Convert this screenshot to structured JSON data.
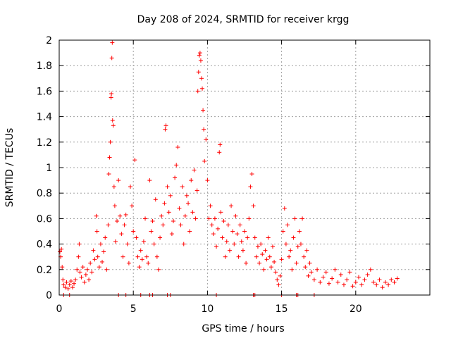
{
  "chart_data": {
    "type": "scatter",
    "title": "Day 208 of 2024, SRMTID for receiver krgg",
    "xlabel": "GPS time / hours",
    "ylabel": "SRMTID / TECUs",
    "xlim": [
      0,
      25
    ],
    "ylim": [
      0,
      2
    ],
    "x_ticks": [
      0,
      5,
      10,
      15,
      20
    ],
    "x_tick_labels": [
      "0",
      "5",
      "10",
      "15",
      "20"
    ],
    "y_ticks": [
      0,
      0.2,
      0.4,
      0.6,
      0.8,
      1,
      1.2,
      1.4,
      1.6,
      1.8,
      2
    ],
    "y_tick_labels": [
      "0",
      "0.2",
      "0.4",
      "0.6",
      "0.8",
      "1",
      "1.2",
      "1.4",
      "1.6",
      "1.8",
      "2"
    ],
    "grid": true,
    "marker": "+",
    "marker_color": "#ff0000",
    "series": [
      {
        "name": "SRMTID",
        "points": [
          [
            0.05,
            0.34
          ],
          [
            0.1,
            0.3
          ],
          [
            0.15,
            0.36
          ],
          [
            0.2,
            0.22
          ],
          [
            0.25,
            0.12
          ],
          [
            0.3,
            0.08
          ],
          [
            0.4,
            0.06
          ],
          [
            0.5,
            0.1
          ],
          [
            0.6,
            0.05
          ],
          [
            0.7,
            0.08
          ],
          [
            0.8,
            0.11
          ],
          [
            0.9,
            0.06
          ],
          [
            1.0,
            0.09
          ],
          [
            1.1,
            0.12
          ],
          [
            1.2,
            0.2
          ],
          [
            1.3,
            0.3
          ],
          [
            1.35,
            0.4
          ],
          [
            1.4,
            0.18
          ],
          [
            1.5,
            0.14
          ],
          [
            1.6,
            0.22
          ],
          [
            1.7,
            0.1
          ],
          [
            1.8,
            0.16
          ],
          [
            1.9,
            0.2
          ],
          [
            2.0,
            0.12
          ],
          [
            2.1,
            0.25
          ],
          [
            2.2,
            0.18
          ],
          [
            2.3,
            0.35
          ],
          [
            2.4,
            0.28
          ],
          [
            2.5,
            0.62
          ],
          [
            2.55,
            0.5
          ],
          [
            2.6,
            0.3
          ],
          [
            2.7,
            0.22
          ],
          [
            2.8,
            0.4
          ],
          [
            2.9,
            0.26
          ],
          [
            3.0,
            0.34
          ],
          [
            3.1,
            0.45
          ],
          [
            3.2,
            0.2
          ],
          [
            3.3,
            0.55
          ],
          [
            3.35,
            0.95
          ],
          [
            3.4,
            1.08
          ],
          [
            3.45,
            1.2
          ],
          [
            3.5,
            1.55
          ],
          [
            3.52,
            1.58
          ],
          [
            3.55,
            1.86
          ],
          [
            3.58,
            1.98
          ],
          [
            3.6,
            1.37
          ],
          [
            3.65,
            1.33
          ],
          [
            3.7,
            0.85
          ],
          [
            3.75,
            0.7
          ],
          [
            3.8,
            0.42
          ],
          [
            3.9,
            0.58
          ],
          [
            4.0,
            0.9
          ],
          [
            4.1,
            0.62
          ],
          [
            4.2,
            0.48
          ],
          [
            4.3,
            0.3
          ],
          [
            4.4,
            0.55
          ],
          [
            4.5,
            0.63
          ],
          [
            4.6,
            0.4
          ],
          [
            4.7,
            0.25
          ],
          [
            4.8,
            0.85
          ],
          [
            4.9,
            0.7
          ],
          [
            5.0,
            0.5
          ],
          [
            5.1,
            1.06
          ],
          [
            5.2,
            0.45
          ],
          [
            5.3,
            0.3
          ],
          [
            5.4,
            0.22
          ],
          [
            5.5,
            0.35
          ],
          [
            5.6,
            0.28
          ],
          [
            5.7,
            0.42
          ],
          [
            5.8,
            0.6
          ],
          [
            5.9,
            0.3
          ],
          [
            6.0,
            0.25
          ],
          [
            6.1,
            0.9
          ],
          [
            6.2,
            0.5
          ],
          [
            6.3,
            0.58
          ],
          [
            6.4,
            0.4
          ],
          [
            6.5,
            0.75
          ],
          [
            6.6,
            0.3
          ],
          [
            6.7,
            0.2
          ],
          [
            6.8,
            0.45
          ],
          [
            6.9,
            0.62
          ],
          [
            7.0,
            0.55
          ],
          [
            7.1,
            0.72
          ],
          [
            7.15,
            1.3
          ],
          [
            7.2,
            1.33
          ],
          [
            7.3,
            0.85
          ],
          [
            7.4,
            0.65
          ],
          [
            7.5,
            0.78
          ],
          [
            7.6,
            0.48
          ],
          [
            7.7,
            0.58
          ],
          [
            7.8,
            0.92
          ],
          [
            7.9,
            1.02
          ],
          [
            8.0,
            1.16
          ],
          [
            8.1,
            0.68
          ],
          [
            8.2,
            0.55
          ],
          [
            8.3,
            0.85
          ],
          [
            8.4,
            0.4
          ],
          [
            8.5,
            0.62
          ],
          [
            8.6,
            0.78
          ],
          [
            8.7,
            0.72
          ],
          [
            8.8,
            0.5
          ],
          [
            8.9,
            0.9
          ],
          [
            9.0,
            0.65
          ],
          [
            9.1,
            0.98
          ],
          [
            9.2,
            0.6
          ],
          [
            9.3,
            0.82
          ],
          [
            9.35,
            1.6
          ],
          [
            9.4,
            1.75
          ],
          [
            9.45,
            1.88
          ],
          [
            9.5,
            1.9
          ],
          [
            9.55,
            1.84
          ],
          [
            9.6,
            1.7
          ],
          [
            9.65,
            1.62
          ],
          [
            9.7,
            1.45
          ],
          [
            9.75,
            1.3
          ],
          [
            9.8,
            1.05
          ],
          [
            9.9,
            1.22
          ],
          [
            10.0,
            0.9
          ],
          [
            10.1,
            0.6
          ],
          [
            10.2,
            0.7
          ],
          [
            10.3,
            0.55
          ],
          [
            10.4,
            0.48
          ],
          [
            10.5,
            0.6
          ],
          [
            10.6,
            0.38
          ],
          [
            10.7,
            0.52
          ],
          [
            10.8,
            1.12
          ],
          [
            10.85,
            1.18
          ],
          [
            10.9,
            0.65
          ],
          [
            11.0,
            0.45
          ],
          [
            11.1,
            0.58
          ],
          [
            11.2,
            0.3
          ],
          [
            11.3,
            0.42
          ],
          [
            11.4,
            0.55
          ],
          [
            11.5,
            0.35
          ],
          [
            11.6,
            0.7
          ],
          [
            11.7,
            0.5
          ],
          [
            11.8,
            0.4
          ],
          [
            11.9,
            0.62
          ],
          [
            12.0,
            0.48
          ],
          [
            12.1,
            0.3
          ],
          [
            12.2,
            0.55
          ],
          [
            12.3,
            0.42
          ],
          [
            12.4,
            0.35
          ],
          [
            12.5,
            0.5
          ],
          [
            12.6,
            0.25
          ],
          [
            12.7,
            0.45
          ],
          [
            12.8,
            0.6
          ],
          [
            12.9,
            0.85
          ],
          [
            13.0,
            0.95
          ],
          [
            13.1,
            0.7
          ],
          [
            13.2,
            0.45
          ],
          [
            13.3,
            0.3
          ],
          [
            13.4,
            0.38
          ],
          [
            13.5,
            0.25
          ],
          [
            13.6,
            0.4
          ],
          [
            13.7,
            0.32
          ],
          [
            13.8,
            0.2
          ],
          [
            13.9,
            0.35
          ],
          [
            14.0,
            0.28
          ],
          [
            14.1,
            0.45
          ],
          [
            14.2,
            0.3
          ],
          [
            14.3,
            0.22
          ],
          [
            14.4,
            0.38
          ],
          [
            14.5,
            0.26
          ],
          [
            14.6,
            0.18
          ],
          [
            14.7,
            0.12
          ],
          [
            14.8,
            0.08
          ],
          [
            14.9,
            0.15
          ],
          [
            15.0,
            0.28
          ],
          [
            15.1,
            0.5
          ],
          [
            15.2,
            0.68
          ],
          [
            15.3,
            0.4
          ],
          [
            15.4,
            0.55
          ],
          [
            15.5,
            0.3
          ],
          [
            15.6,
            0.35
          ],
          [
            15.7,
            0.2
          ],
          [
            15.8,
            0.45
          ],
          [
            15.9,
            0.6
          ],
          [
            16.0,
            0.25
          ],
          [
            16.1,
            0.38
          ],
          [
            16.2,
            0.5
          ],
          [
            16.3,
            0.4
          ],
          [
            16.4,
            0.6
          ],
          [
            16.5,
            0.3
          ],
          [
            16.6,
            0.22
          ],
          [
            16.7,
            0.35
          ],
          [
            16.8,
            0.15
          ],
          [
            16.9,
            0.25
          ],
          [
            17.0,
            0.18
          ],
          [
            17.2,
            0.12
          ],
          [
            17.4,
            0.2
          ],
          [
            17.6,
            0.1
          ],
          [
            17.8,
            0.14
          ],
          [
            18.0,
            0.18
          ],
          [
            18.2,
            0.09
          ],
          [
            18.4,
            0.13
          ],
          [
            18.6,
            0.2
          ],
          [
            18.8,
            0.1
          ],
          [
            19.0,
            0.16
          ],
          [
            19.2,
            0.08
          ],
          [
            19.4,
            0.12
          ],
          [
            19.6,
            0.18
          ],
          [
            19.8,
            0.07
          ],
          [
            20.0,
            0.1
          ],
          [
            20.2,
            0.14
          ],
          [
            20.4,
            0.08
          ],
          [
            20.6,
            0.12
          ],
          [
            20.8,
            0.16
          ],
          [
            21.0,
            0.2
          ],
          [
            21.2,
            0.1
          ],
          [
            21.4,
            0.08
          ],
          [
            21.6,
            0.12
          ],
          [
            21.8,
            0.06
          ],
          [
            22.0,
            0.1
          ],
          [
            22.2,
            0.08
          ],
          [
            22.4,
            0.12
          ],
          [
            22.6,
            0.1
          ],
          [
            22.8,
            0.13
          ],
          [
            0.3,
            0.0
          ],
          [
            0.7,
            0.0
          ],
          [
            4.0,
            0.0
          ],
          [
            4.5,
            0.0
          ],
          [
            5.5,
            0.0
          ],
          [
            6.1,
            0.0
          ],
          [
            6.3,
            0.0
          ],
          [
            7.3,
            0.0
          ],
          [
            7.5,
            0.0
          ],
          [
            10.6,
            0.0
          ],
          [
            13.1,
            0.0
          ],
          [
            13.2,
            0.0
          ],
          [
            15.0,
            0.0
          ],
          [
            16.0,
            0.0
          ],
          [
            16.1,
            0.0
          ],
          [
            17.2,
            0.0
          ]
        ]
      }
    ]
  }
}
